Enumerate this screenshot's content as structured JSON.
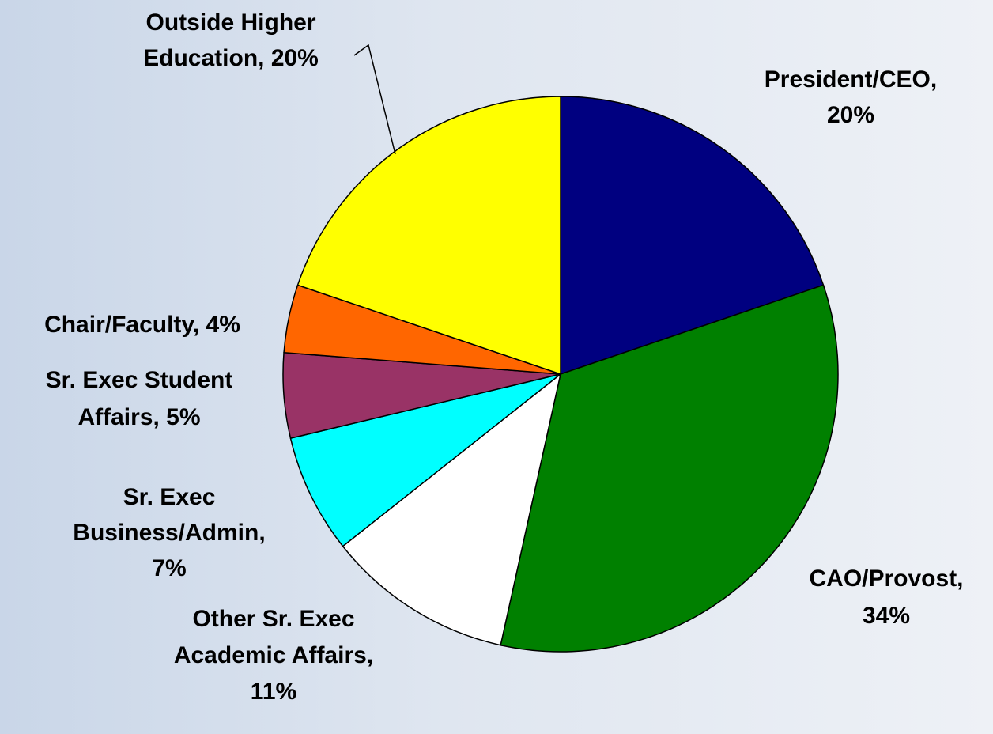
{
  "chart_data": {
    "type": "pie",
    "title": "",
    "start_angle_deg": 0,
    "direction": "clockwise",
    "slices": [
      {
        "label": "President/CEO",
        "value": 20,
        "value_label": "20%",
        "color": "#000080"
      },
      {
        "label": "CAO/Provost",
        "value": 34,
        "value_label": "34%",
        "color": "#008000"
      },
      {
        "label": "Other Sr. Exec Academic Affairs",
        "value": 11,
        "value_label": "11%",
        "color": "#ffffff"
      },
      {
        "label": "Sr. Exec Business/Admin",
        "value": 7,
        "value_label": "7%",
        "color": "#00ffff"
      },
      {
        "label": "Sr. Exec Student Affairs",
        "value": 5,
        "value_label": "5%",
        "color": "#993366"
      },
      {
        "label": "Chair/Faculty",
        "value": 4,
        "value_label": "4%",
        "color": "#ff6600"
      },
      {
        "label": "Outside Higher Education",
        "value": 20,
        "value_label": "20%",
        "color": "#ffff00"
      }
    ],
    "labels_text": [
      [
        "President/CEO,",
        "20%"
      ],
      [
        "CAO/Provost,",
        "34%"
      ],
      [
        "Other Sr. Exec",
        "Academic Affairs,",
        "11%"
      ],
      [
        "Sr. Exec",
        "Business/Admin,",
        "7%"
      ],
      [
        "Sr. Exec Student",
        "Affairs, 5%"
      ],
      [
        "Chair/Faculty, 4%"
      ],
      [
        "Outside Higher",
        "Education, 20%"
      ]
    ],
    "legend": "none"
  }
}
